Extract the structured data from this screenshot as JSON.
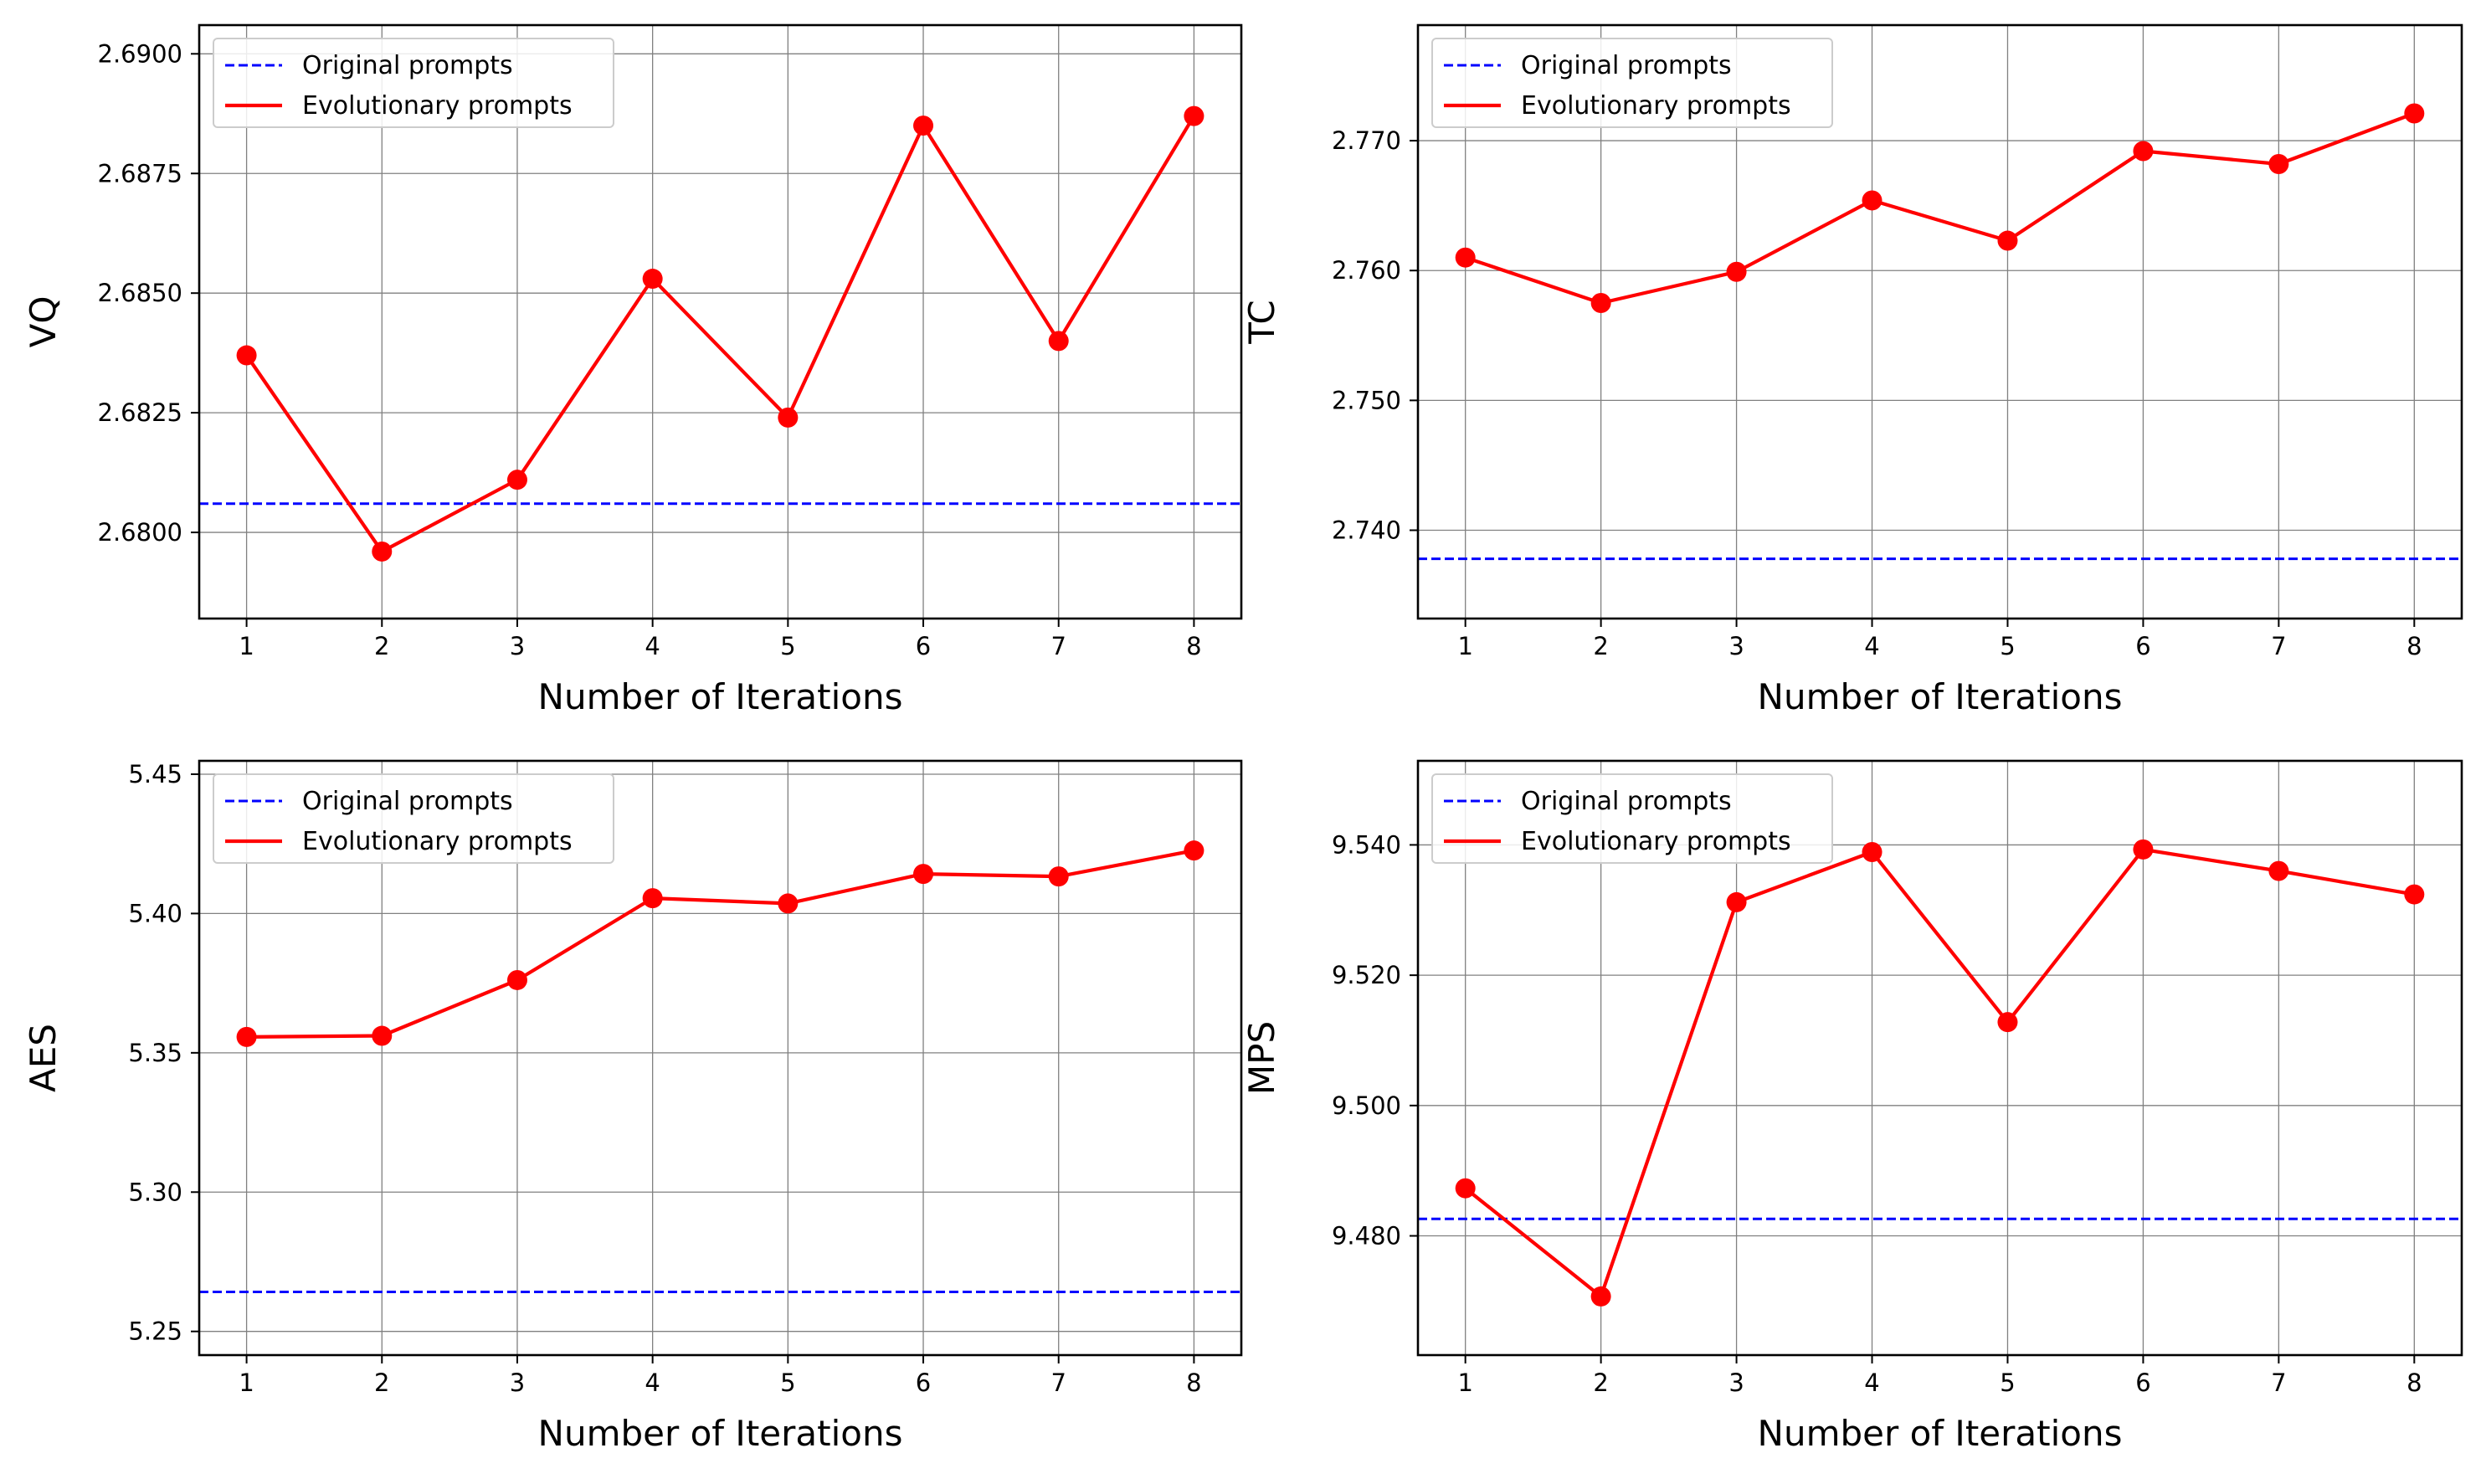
{
  "chart_data": [
    {
      "type": "line",
      "panel": "top-left",
      "xlabel": "Number of Iterations",
      "ylabel": "VQ",
      "x": [
        1,
        2,
        3,
        4,
        5,
        6,
        7,
        8
      ],
      "xlim": [
        0.65,
        8.35
      ],
      "ylim": [
        2.6782,
        2.6906
      ],
      "yticks": [
        2.68,
        2.6825,
        2.685,
        2.6875,
        2.69
      ],
      "ytick_labels": [
        "2.6800",
        "2.6825",
        "2.6850",
        "2.6875",
        "2.6900"
      ],
      "grid": true,
      "legend_position": "upper-left",
      "series": [
        {
          "name": "Original prompts",
          "style": "dashed",
          "color": "#0000ff",
          "baseline": 2.6806
        },
        {
          "name": "Evolutionary prompts",
          "style": "solid-marker",
          "color": "#ff0000",
          "values": [
            2.6837,
            2.6796,
            2.6811,
            2.6853,
            2.6824,
            2.6885,
            2.684,
            2.6887
          ]
        }
      ]
    },
    {
      "type": "line",
      "panel": "top-right",
      "xlabel": "Number of Iterations",
      "ylabel": "TC",
      "x": [
        1,
        2,
        3,
        4,
        5,
        6,
        7,
        8
      ],
      "xlim": [
        0.65,
        8.35
      ],
      "ylim": [
        2.7332,
        2.7789
      ],
      "yticks": [
        2.74,
        2.75,
        2.76,
        2.77
      ],
      "ytick_labels": [
        "2.740",
        "2.750",
        "2.760",
        "2.770"
      ],
      "grid": true,
      "legend_position": "upper-left",
      "series": [
        {
          "name": "Original prompts",
          "style": "dashed",
          "color": "#0000ff",
          "baseline": 2.7378
        },
        {
          "name": "Evolutionary prompts",
          "style": "solid-marker",
          "color": "#ff0000",
          "values": [
            2.761,
            2.7575,
            2.7599,
            2.7654,
            2.7623,
            2.7692,
            2.7682,
            2.7721
          ]
        }
      ]
    },
    {
      "type": "line",
      "panel": "bottom-left",
      "xlabel": "Number of Iterations",
      "ylabel": "AES",
      "x": [
        1,
        2,
        3,
        4,
        5,
        6,
        7,
        8
      ],
      "xlim": [
        0.65,
        8.35
      ],
      "ylim": [
        5.2415,
        5.4548
      ],
      "yticks": [
        5.25,
        5.3,
        5.35,
        5.4,
        5.45
      ],
      "ytick_labels": [
        "5.25",
        "5.30",
        "5.35",
        "5.40",
        "5.45"
      ],
      "grid": true,
      "legend_position": "upper-left",
      "series": [
        {
          "name": "Original prompts",
          "style": "dashed",
          "color": "#0000ff",
          "baseline": 5.2642
        },
        {
          "name": "Evolutionary prompts",
          "style": "solid-marker",
          "color": "#ff0000",
          "values": [
            5.3557,
            5.3561,
            5.3761,
            5.4055,
            5.4036,
            5.4142,
            5.4133,
            5.4226
          ]
        }
      ]
    },
    {
      "type": "line",
      "panel": "bottom-right",
      "xlabel": "Number of Iterations",
      "ylabel": "MPS",
      "x": [
        1,
        2,
        3,
        4,
        5,
        6,
        7,
        8
      ],
      "xlim": [
        0.65,
        8.35
      ],
      "ylim": [
        9.4617,
        9.5529
      ],
      "yticks": [
        9.48,
        9.5,
        9.52,
        9.54
      ],
      "ytick_labels": [
        "9.480",
        "9.500",
        "9.520",
        "9.540"
      ],
      "grid": true,
      "legend_position": "upper-left",
      "series": [
        {
          "name": "Original prompts",
          "style": "dashed",
          "color": "#0000ff",
          "baseline": 9.4826
        },
        {
          "name": "Evolutionary prompts",
          "style": "solid-marker",
          "color": "#ff0000",
          "values": [
            9.4873,
            9.4707,
            9.5312,
            9.5389,
            9.5128,
            9.5393,
            9.536,
            9.5324
          ]
        }
      ]
    }
  ]
}
